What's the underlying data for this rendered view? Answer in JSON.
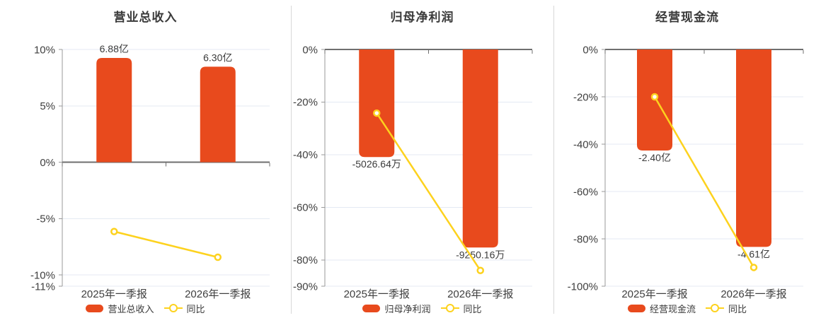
{
  "colors": {
    "bar": "#e84a1d",
    "yoy_line": "#fdd21e",
    "marker_fill": "#ffffff",
    "axis_zero_line": "#6f6f6f",
    "axis_line": "#999999",
    "grid_line": "#e4eaf3",
    "label_text": "#3b3b3b",
    "tick_text": "#3f3f3f",
    "divider": "#d8d8d8",
    "background": "#ffffff"
  },
  "chart_data": [
    {
      "type": "bar+line",
      "title": "营业总收入",
      "categories": [
        "2025年一季报",
        "2026年一季报"
      ],
      "bar": {
        "name": "营业总收入",
        "value_labels": [
          "6.88亿",
          "6.30亿"
        ],
        "heights_on_pct_axis": [
          9.25,
          8.47
        ],
        "label_position": "above"
      },
      "line": {
        "name": "同比",
        "values_pct": [
          -6.15,
          -8.43
        ]
      },
      "ylim": [
        -11,
        10
      ],
      "yticks": [
        {
          "value": 10,
          "label": "10%"
        },
        {
          "value": 5,
          "label": "5%"
        },
        {
          "value": 0,
          "label": "0%"
        },
        {
          "value": -5,
          "label": "-5%"
        },
        {
          "value": -10,
          "label": "-10%"
        },
        {
          "value": -11,
          "label": "-11%"
        }
      ],
      "legend": [
        "营业总收入",
        "同比"
      ],
      "legend_position": "bottom",
      "grid": true
    },
    {
      "type": "bar+line",
      "title": "归母净利润",
      "categories": [
        "2025年一季报",
        "2026年一季报"
      ],
      "bar": {
        "name": "归母净利润",
        "value_labels": [
          "-5026.64万",
          "-9250.16万"
        ],
        "heights_on_pct_axis": [
          -40.9,
          -75.3
        ],
        "label_position": "below"
      },
      "line": {
        "name": "同比",
        "values_pct": [
          -24.2,
          -84.02
        ]
      },
      "ylim": [
        -90,
        0
      ],
      "yticks": [
        {
          "value": 0,
          "label": "0%"
        },
        {
          "value": -20,
          "label": "-20%"
        },
        {
          "value": -40,
          "label": "-40%"
        },
        {
          "value": -60,
          "label": "-60%"
        },
        {
          "value": -80,
          "label": "-80%"
        },
        {
          "value": -90,
          "label": "-90%"
        }
      ],
      "legend": [
        "归母净利润",
        "同比"
      ],
      "legend_position": "bottom",
      "grid": true
    },
    {
      "type": "bar+line",
      "title": "经营现金流",
      "categories": [
        "2025年一季报",
        "2026年一季报"
      ],
      "bar": {
        "name": "经营现金流",
        "value_labels": [
          "-2.40亿",
          "-4.61亿"
        ],
        "heights_on_pct_axis": [
          -42.7,
          -83.4
        ],
        "label_position": "below"
      },
      "line": {
        "name": "同比",
        "values_pct": [
          -20.0,
          -92.08
        ]
      },
      "ylim": [
        -100,
        0
      ],
      "yticks": [
        {
          "value": 0,
          "label": "0%"
        },
        {
          "value": -20,
          "label": "-20%"
        },
        {
          "value": -40,
          "label": "-40%"
        },
        {
          "value": -60,
          "label": "-60%"
        },
        {
          "value": -80,
          "label": "-80%"
        },
        {
          "value": -100,
          "label": "-100%"
        }
      ],
      "legend": [
        "经营现金流",
        "同比"
      ],
      "legend_position": "bottom",
      "grid": true
    }
  ]
}
